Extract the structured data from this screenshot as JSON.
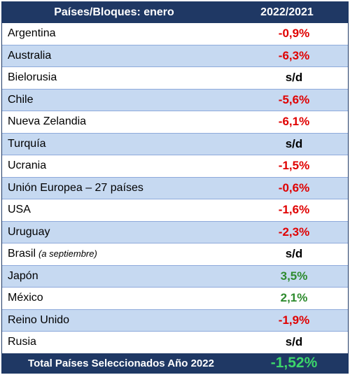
{
  "header": {
    "col1": "Países/Bloques: enero",
    "col2": "2022/2021"
  },
  "rows": [
    {
      "country": "Argentina",
      "value": "-0,9%",
      "status": "neg"
    },
    {
      "country": "Australia",
      "value": "-6,3%",
      "status": "neg"
    },
    {
      "country": "Bielorusia",
      "value": "s/d",
      "status": "neu"
    },
    {
      "country": "Chile",
      "value": "-5,6%",
      "status": "neg"
    },
    {
      "country": "Nueva Zelandia",
      "value": "-6,1%",
      "status": "neg"
    },
    {
      "country": "Turquía",
      "value": "s/d",
      "status": "neu"
    },
    {
      "country": "Ucrania",
      "value": "-1,5%",
      "status": "neg"
    },
    {
      "country": "Unión Europea – 27 países",
      "value": "-0,6%",
      "status": "neg"
    },
    {
      "country": "USA",
      "value": "-1,6%",
      "status": "neg"
    },
    {
      "country": "Uruguay",
      "value": "-2,3%",
      "status": "neg"
    },
    {
      "country": "Brasil",
      "note": "(a septiembre)",
      "value": "s/d",
      "status": "neu"
    },
    {
      "country": "Japón",
      "value": "3,5%",
      "status": "pos"
    },
    {
      "country": "México",
      "value": "2,1%",
      "status": "pos"
    },
    {
      "country": "Reino Unido",
      "value": "-1,9%",
      "status": "neg"
    },
    {
      "country": "Rusia",
      "value": "s/d",
      "status": "neu"
    }
  ],
  "footer": {
    "label": "Total Países Seleccionados Año 2022",
    "value": "-1,52%"
  },
  "colors": {
    "header_bg": "#1f3864",
    "stripe": "#c6d9f1",
    "negative": "#e00000",
    "positive": "#2e8b2e",
    "total_value": "#3cd66b"
  }
}
